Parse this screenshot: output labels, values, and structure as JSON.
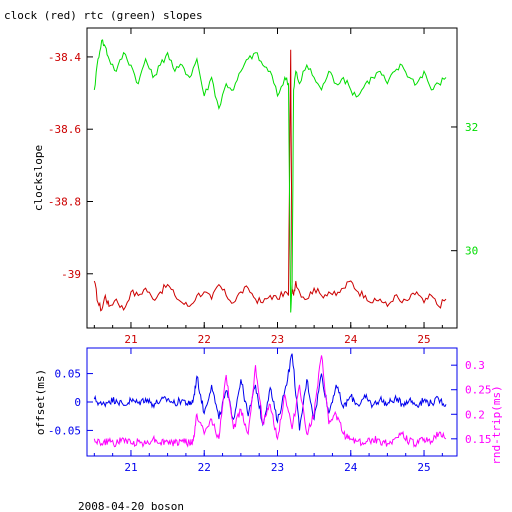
{
  "title": "clock (red) rtc (green) slopes",
  "footer": "2008-04-20 boson",
  "colors": {
    "red": "#cc0000",
    "green": "#00dd00",
    "blue": "#0000ee",
    "magenta": "#ff00ff",
    "black": "#000000"
  },
  "chart_data": [
    {
      "type": "line",
      "title": "clock (red) rtc (green) slopes",
      "ylabel": "clockslope",
      "xlim": [
        20.4,
        25.45
      ],
      "ylim_left": [
        -39.15,
        -38.32
      ],
      "ylim_right": [
        28.75,
        33.6
      ],
      "grid": false,
      "x_ticks": [
        "21",
        "22",
        "23",
        "24",
        "25"
      ],
      "y_left_ticks": [
        "-38.4",
        "-38.6",
        "-38.8",
        "-39"
      ],
      "y_right_ticks": [
        "32",
        "30"
      ],
      "series": [
        {
          "axis": "left",
          "x": [
            20.5,
            20.55,
            20.6,
            20.65,
            20.7,
            20.8,
            20.9,
            21.0,
            21.1,
            21.2,
            21.3,
            21.4,
            21.5,
            21.6,
            21.7,
            21.8,
            21.9,
            22.0,
            22.1,
            22.2,
            22.3,
            22.4,
            22.5,
            22.6,
            22.7,
            22.8,
            22.9,
            23.0,
            23.1,
            23.15,
            23.18,
            23.2,
            23.22,
            23.25,
            23.3,
            23.4,
            23.5,
            23.6,
            23.7,
            23.8,
            23.9,
            24.0,
            24.1,
            24.2,
            24.3,
            24.4,
            24.5,
            24.6,
            24.7,
            24.8,
            24.9,
            25.0,
            25.1,
            25.2,
            25.3
          ],
          "y": [
            -39.02,
            -39.08,
            -39.1,
            -39.06,
            -39.09,
            -39.07,
            -39.1,
            -39.05,
            -39.06,
            -39.04,
            -39.07,
            -39.05,
            -39.03,
            -39.06,
            -39.08,
            -39.09,
            -39.06,
            -39.05,
            -39.07,
            -39.03,
            -39.06,
            -39.08,
            -39.05,
            -39.04,
            -39.07,
            -39.08,
            -39.06,
            -39.07,
            -39.05,
            -39.06,
            -38.38,
            -39.05,
            -39.06,
            -39.02,
            -39.05,
            -39.07,
            -39.04,
            -39.06,
            -39.05,
            -39.06,
            -39.04,
            -39.02,
            -39.05,
            -39.06,
            -39.08,
            -39.07,
            -39.09,
            -39.06,
            -39.08,
            -39.07,
            -39.05,
            -39.08,
            -39.06,
            -39.09,
            -39.07
          ]
        },
        {
          "axis": "right",
          "x": [
            20.5,
            20.55,
            20.6,
            20.65,
            20.7,
            20.8,
            20.9,
            21.0,
            21.1,
            21.2,
            21.3,
            21.4,
            21.5,
            21.6,
            21.7,
            21.8,
            21.9,
            22.0,
            22.1,
            22.2,
            22.3,
            22.4,
            22.5,
            22.6,
            22.7,
            22.8,
            22.9,
            23.0,
            23.1,
            23.15,
            23.18,
            23.2,
            23.22,
            23.25,
            23.3,
            23.4,
            23.5,
            23.6,
            23.7,
            23.8,
            23.9,
            24.0,
            24.1,
            24.2,
            24.3,
            24.4,
            24.5,
            24.6,
            24.7,
            24.8,
            24.9,
            25.0,
            25.1,
            25.2,
            25.3
          ],
          "y": [
            32.6,
            33.1,
            33.4,
            33.3,
            33.1,
            32.9,
            33.2,
            33.0,
            32.7,
            33.1,
            32.8,
            33.0,
            33.2,
            32.9,
            33.0,
            32.8,
            33.1,
            32.5,
            32.8,
            32.3,
            32.7,
            32.6,
            32.9,
            33.1,
            33.2,
            33.0,
            32.9,
            32.5,
            32.8,
            32.7,
            29.0,
            29.5,
            32.6,
            32.9,
            32.7,
            33.0,
            32.8,
            32.6,
            32.9,
            32.7,
            32.8,
            32.6,
            32.5,
            32.7,
            32.8,
            32.9,
            32.7,
            32.9,
            33.0,
            32.8,
            32.7,
            32.9,
            32.6,
            32.7,
            32.8
          ]
        }
      ]
    },
    {
      "type": "line",
      "ylabel_left": "offset(ms)",
      "ylabel_right": "rnd-trip(ms)",
      "xlim": [
        20.4,
        25.45
      ],
      "ylim_left": [
        -0.095,
        0.095
      ],
      "ylim_right": [
        0.115,
        0.335
      ],
      "grid": false,
      "x_ticks": [
        "21",
        "22",
        "23",
        "24",
        "25"
      ],
      "y_left_ticks": [
        "0.05",
        "0",
        "-0.05"
      ],
      "y_right_ticks": [
        "0.3",
        "0.25",
        "0.2",
        "0.15"
      ],
      "series": [
        {
          "axis": "left",
          "x": [
            20.5,
            20.6,
            20.7,
            20.8,
            20.9,
            21.0,
            21.1,
            21.2,
            21.3,
            21.4,
            21.5,
            21.6,
            21.7,
            21.8,
            21.85,
            21.9,
            22.0,
            22.1,
            22.2,
            22.3,
            22.4,
            22.5,
            22.6,
            22.7,
            22.8,
            22.9,
            23.0,
            23.1,
            23.2,
            23.3,
            23.4,
            23.5,
            23.6,
            23.7,
            23.8,
            23.9,
            24.0,
            24.1,
            24.2,
            24.3,
            24.4,
            24.5,
            24.6,
            24.7,
            24.8,
            24.9,
            25.0,
            25.1,
            25.2,
            25.3
          ],
          "y": [
            0.005,
            -0.005,
            0.002,
            0.004,
            -0.006,
            0.003,
            -0.002,
            0.006,
            -0.004,
            0.002,
            0.005,
            -0.003,
            0.004,
            -0.005,
            0.003,
            0.045,
            -0.02,
            0.03,
            -0.03,
            0.02,
            -0.03,
            0.04,
            -0.025,
            0.03,
            -0.04,
            0.025,
            -0.035,
            0.02,
            0.085,
            -0.05,
            0.04,
            -0.03,
            0.05,
            -0.02,
            0.03,
            -0.01,
            0.01,
            -0.005,
            0.008,
            -0.006,
            0.005,
            -0.004,
            0.006,
            -0.003,
            0.004,
            -0.005,
            0.003,
            -0.002,
            0.005,
            -0.004
          ]
        },
        {
          "axis": "right",
          "x": [
            20.5,
            20.6,
            20.7,
            20.8,
            20.9,
            21.0,
            21.1,
            21.2,
            21.3,
            21.4,
            21.5,
            21.6,
            21.7,
            21.8,
            21.85,
            21.9,
            22.0,
            22.1,
            22.2,
            22.3,
            22.4,
            22.5,
            22.6,
            22.7,
            22.8,
            22.9,
            23.0,
            23.1,
            23.2,
            23.3,
            23.4,
            23.5,
            23.6,
            23.7,
            23.8,
            23.9,
            24.0,
            24.1,
            24.2,
            24.3,
            24.4,
            24.5,
            24.6,
            24.7,
            24.8,
            24.9,
            25.0,
            25.1,
            25.2,
            25.3
          ],
          "y": [
            0.15,
            0.14,
            0.145,
            0.14,
            0.15,
            0.14,
            0.145,
            0.14,
            0.15,
            0.142,
            0.145,
            0.14,
            0.148,
            0.14,
            0.145,
            0.2,
            0.16,
            0.19,
            0.15,
            0.28,
            0.17,
            0.21,
            0.16,
            0.3,
            0.18,
            0.22,
            0.15,
            0.24,
            0.17,
            0.26,
            0.16,
            0.2,
            0.32,
            0.18,
            0.2,
            0.16,
            0.15,
            0.145,
            0.14,
            0.15,
            0.145,
            0.14,
            0.15,
            0.16,
            0.145,
            0.14,
            0.15,
            0.145,
            0.16,
            0.15
          ]
        }
      ]
    }
  ]
}
